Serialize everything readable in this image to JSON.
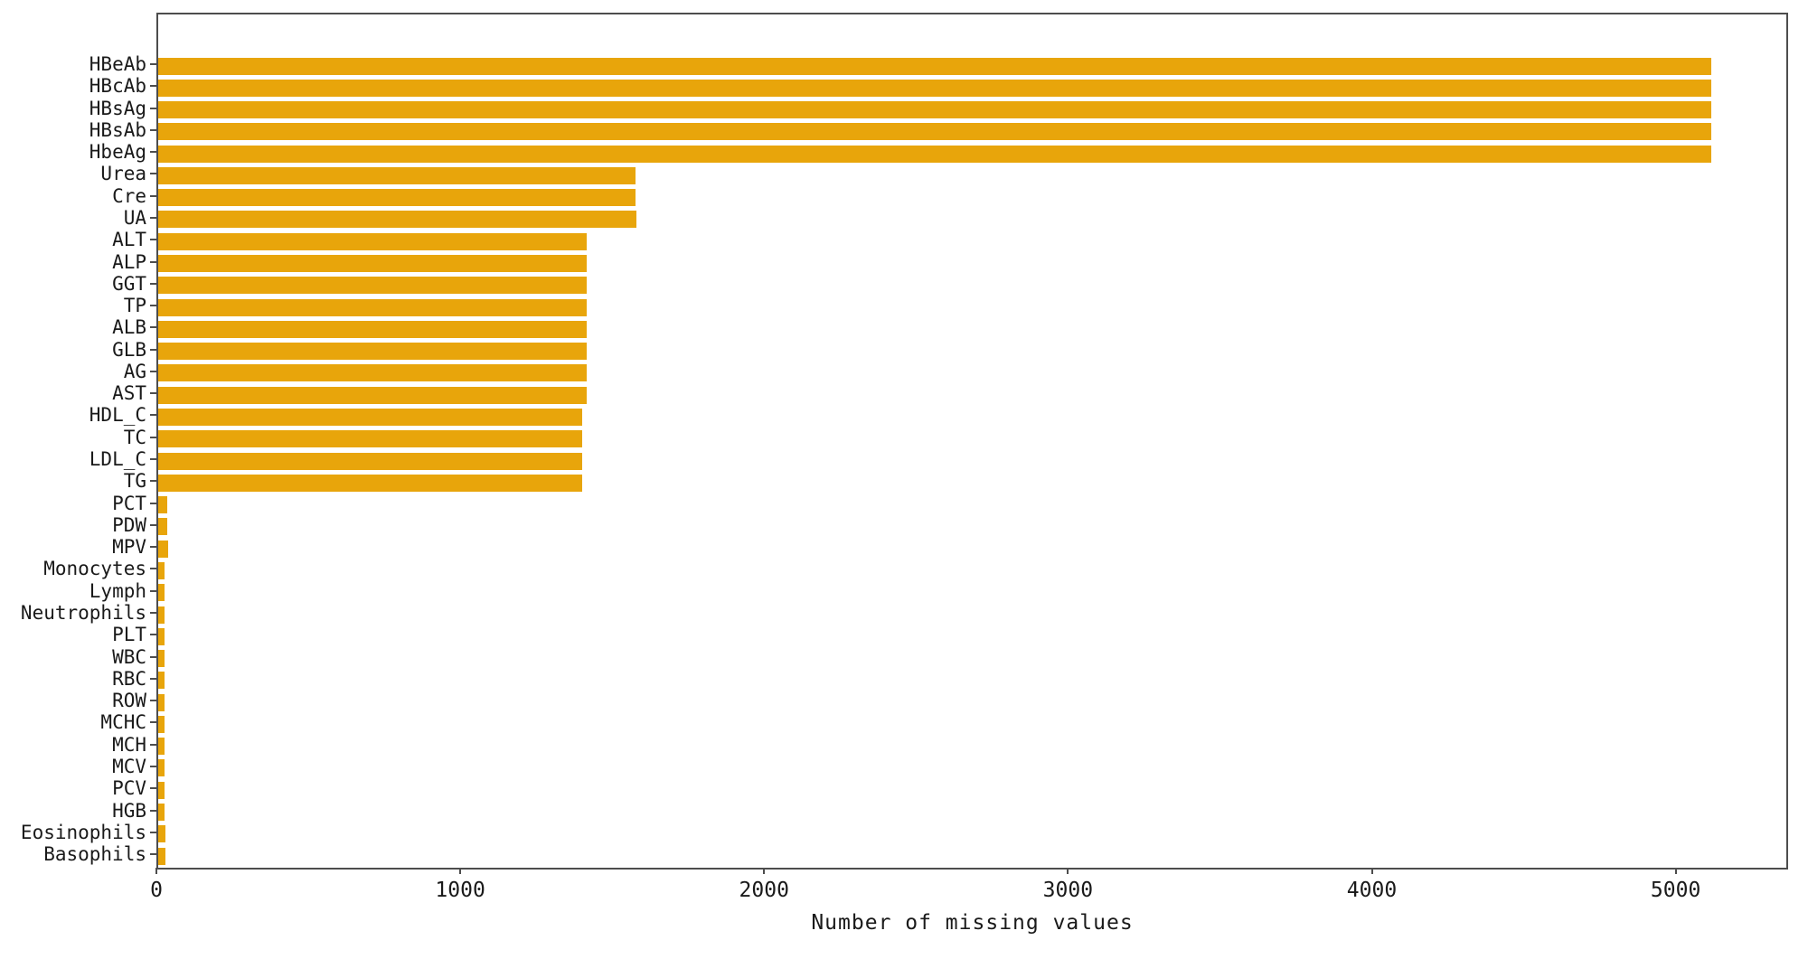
{
  "chart_data": {
    "type": "bar",
    "orientation": "horizontal",
    "title": "",
    "xlabel": "Number of missing values",
    "ylabel": "",
    "categories": [
      "HBeAb",
      "HBcAb",
      "HBsAg",
      "HBsAb",
      "HbeAg",
      "Urea",
      "Cre",
      "UA",
      "ALT",
      "ALP",
      "GGT",
      "TP",
      "ALB",
      "GLB",
      "AG",
      "AST",
      "HDL_C",
      "TC",
      "LDL_C",
      "TG",
      "PCT",
      "PDW",
      "MPV",
      "Monocytes",
      "Lymph",
      "Neutrophils",
      "PLT",
      "WBC",
      "RBC",
      "ROW",
      "MCHC",
      "MCH",
      "MCV",
      "PCV",
      "HGB",
      "Eosinophils",
      "Basophils"
    ],
    "values": [
      5110,
      5110,
      5110,
      5110,
      5110,
      1570,
      1570,
      1575,
      1410,
      1410,
      1410,
      1410,
      1410,
      1410,
      1410,
      1410,
      1395,
      1395,
      1395,
      1395,
      30,
      30,
      32,
      20,
      22,
      22,
      22,
      22,
      22,
      22,
      22,
      22,
      22,
      20,
      22,
      25,
      25
    ],
    "xlim": [
      0,
      5370
    ],
    "xticks": [
      0,
      1000,
      2000,
      3000,
      4000,
      5000
    ],
    "bar_color": "#E8A50B",
    "axis_color": "#4d4d4d",
    "text_color": "#1a1a1a",
    "grid": false,
    "legend": null
  }
}
